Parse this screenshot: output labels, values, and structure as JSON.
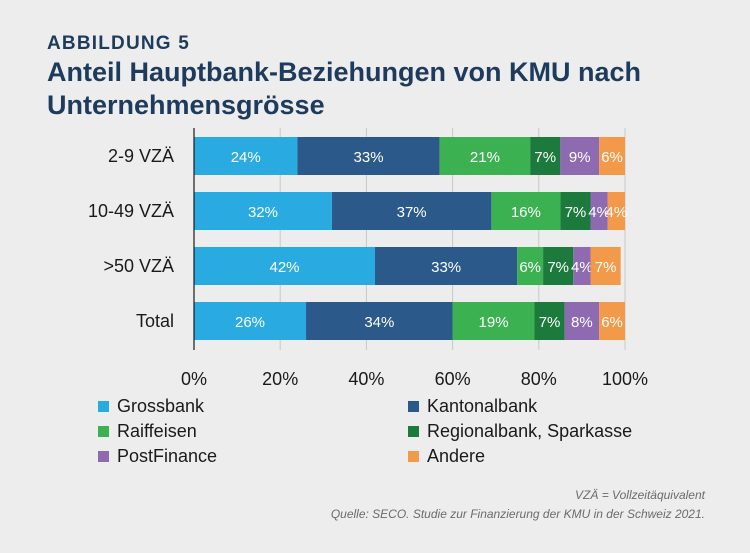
{
  "figure_label": "ABBILDUNG 5",
  "title": "Anteil Hauptbank-Beziehungen von KMU nach Unternehmensgrösse",
  "footnotes": {
    "abbreviation": "VZÄ = Vollzeitäquivalent",
    "source": "Quelle: SECO. Studie zur Finanzierung der KMU in der Schweiz 2021."
  },
  "chart_data": {
    "type": "bar",
    "orientation": "horizontal",
    "stacked": true,
    "title": "Anteil Hauptbank-Beziehungen von KMU nach Unternehmensgrösse",
    "categories": [
      "2-9 VZÄ",
      "10-49 VZÄ",
      ">50 VZÄ",
      "Total"
    ],
    "xlim": [
      0,
      100
    ],
    "xticks": [
      "0%",
      "20%",
      "40%",
      "60%",
      "80%",
      "100%"
    ],
    "grid": true,
    "legend_position": "bottom",
    "series": [
      {
        "name": "Grossbank",
        "color": "#29abe2",
        "values": [
          24,
          32,
          42,
          26
        ]
      },
      {
        "name": "Kantonalbank",
        "color": "#2b5a8a",
        "values": [
          33,
          37,
          33,
          34
        ]
      },
      {
        "name": "Raiffeisen",
        "color": "#3bb151",
        "values": [
          21,
          16,
          6,
          19
        ]
      },
      {
        "name": "Regionalbank, Sparkasse",
        "color": "#1b7a3c",
        "values": [
          7,
          7,
          7,
          7
        ]
      },
      {
        "name": "PostFinance",
        "color": "#8e6bb0",
        "values": [
          9,
          4,
          4,
          8
        ]
      },
      {
        "name": "Andere",
        "color": "#f29a4a",
        "values": [
          6,
          4,
          7,
          6
        ]
      }
    ]
  }
}
